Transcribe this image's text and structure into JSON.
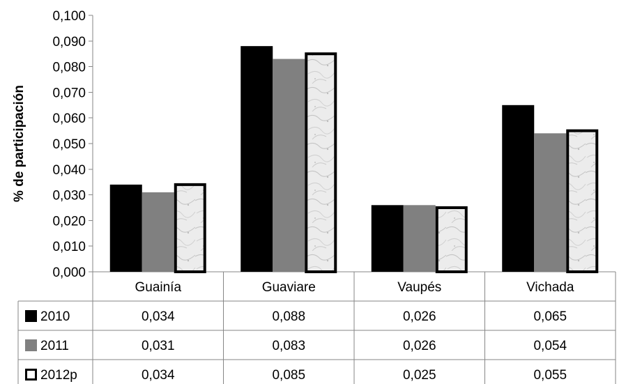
{
  "chart_data": {
    "type": "bar",
    "title": "",
    "xlabel": "",
    "ylabel": "% de participación",
    "ylim": [
      0,
      0.1
    ],
    "yticks": [
      "0,000",
      "0,010",
      "0,020",
      "0,030",
      "0,040",
      "0,050",
      "0,060",
      "0,070",
      "0,080",
      "0,090",
      "0,100"
    ],
    "grid": false,
    "legend": "data-table",
    "categories": [
      "Guainía",
      "Guaviare",
      "Vaupés",
      "Vichada"
    ],
    "series": [
      {
        "name": "2010",
        "values": [
          0.034,
          0.088,
          0.026,
          0.065
        ],
        "labels": [
          "0,034",
          "0,088",
          "0,026",
          "0,065"
        ],
        "color": "#000000",
        "style": "solid"
      },
      {
        "name": "2011",
        "values": [
          0.031,
          0.083,
          0.026,
          0.054
        ],
        "labels": [
          "0,031",
          "0,083",
          "0,026",
          "0,054"
        ],
        "color": "#808080",
        "style": "solid"
      },
      {
        "name": "2012p",
        "values": [
          0.034,
          0.085,
          0.025,
          0.055
        ],
        "labels": [
          "0,034",
          "0,085",
          "0,025",
          "0,055"
        ],
        "color": "#e8e8e8",
        "style": "marble-outlined"
      }
    ]
  }
}
